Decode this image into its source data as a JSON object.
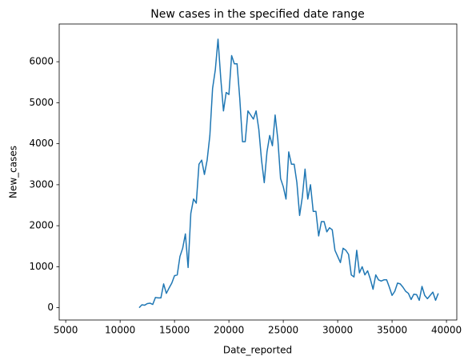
{
  "chart_data": {
    "type": "line",
    "title": "New cases in the specified date range",
    "x_label": "Date_reported",
    "y_label": "New_cases",
    "x": [
      11750,
      12000,
      12250,
      12500,
      12750,
      13000,
      13250,
      13500,
      13750,
      14000,
      14250,
      14500,
      14750,
      15000,
      15250,
      15500,
      15750,
      16000,
      16250,
      16500,
      16750,
      17000,
      17250,
      17500,
      17750,
      18000,
      18250,
      18500,
      18750,
      19000,
      19250,
      19500,
      19750,
      20000,
      20250,
      20500,
      20750,
      21000,
      21250,
      21500,
      21750,
      22000,
      22250,
      22500,
      22750,
      23000,
      23250,
      23500,
      23750,
      24000,
      24250,
      24500,
      24750,
      25000,
      25250,
      25500,
      25750,
      26000,
      26250,
      26500,
      26750,
      27000,
      27250,
      27500,
      27750,
      28000,
      28250,
      28500,
      28750,
      29000,
      29250,
      29500,
      29750,
      30000,
      30250,
      30500,
      30750,
      31000,
      31250,
      31500,
      31750,
      32000,
      32250,
      32500,
      32750,
      33000,
      33250,
      33500,
      33750,
      34000,
      34250,
      34500,
      34750,
      35000,
      35250,
      35500,
      35750,
      36000,
      36250,
      36500,
      36750,
      37000,
      37250,
      37500,
      37750,
      38000,
      38250,
      38500,
      38750,
      39000,
      39250
    ],
    "series": [
      {
        "name": "New_cases",
        "color": "#1f77b4",
        "values": [
          0,
          70,
          60,
          100,
          110,
          80,
          250,
          240,
          240,
          580,
          350,
          480,
          600,
          780,
          800,
          1250,
          1450,
          1800,
          980,
          2300,
          2650,
          2550,
          3500,
          3600,
          3250,
          3600,
          4200,
          5350,
          5800,
          6550,
          5600,
          4800,
          5250,
          5200,
          6150,
          5950,
          5950,
          5100,
          4050,
          4050,
          4800,
          4700,
          4600,
          4800,
          4350,
          3600,
          3050,
          3800,
          4200,
          3950,
          4700,
          4100,
          3150,
          2950,
          2650,
          3800,
          3500,
          3500,
          3050,
          2250,
          2700,
          3380,
          2650,
          3000,
          2350,
          2350,
          1750,
          2100,
          2100,
          1850,
          1950,
          1900,
          1400,
          1250,
          1100,
          1450,
          1400,
          1300,
          800,
          750,
          1400,
          850,
          1000,
          800,
          900,
          700,
          450,
          800,
          680,
          650,
          680,
          680,
          500,
          300,
          400,
          600,
          580,
          500,
          400,
          350,
          200,
          330,
          320,
          180,
          520,
          300,
          220,
          300,
          380,
          180,
          350
        ]
      }
    ],
    "xlim": [
      4400,
      40950
    ],
    "xticks": [
      5000,
      10000,
      15000,
      20000,
      25000,
      30000,
      35000,
      40000
    ],
    "ylim": [
      -300,
      6920
    ],
    "yticks": [
      0,
      1000,
      2000,
      3000,
      4000,
      5000,
      6000
    ]
  }
}
